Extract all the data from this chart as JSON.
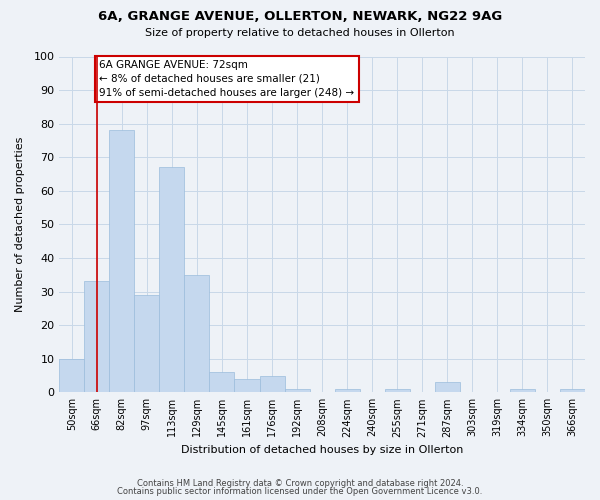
{
  "title": "6A, GRANGE AVENUE, OLLERTON, NEWARK, NG22 9AG",
  "subtitle": "Size of property relative to detached houses in Ollerton",
  "xlabel": "Distribution of detached houses by size in Ollerton",
  "ylabel": "Number of detached properties",
  "bar_labels": [
    "50sqm",
    "66sqm",
    "82sqm",
    "97sqm",
    "113sqm",
    "129sqm",
    "145sqm",
    "161sqm",
    "176sqm",
    "192sqm",
    "208sqm",
    "224sqm",
    "240sqm",
    "255sqm",
    "271sqm",
    "287sqm",
    "303sqm",
    "319sqm",
    "334sqm",
    "350sqm",
    "366sqm"
  ],
  "bar_values": [
    10,
    33,
    78,
    29,
    67,
    35,
    6,
    4,
    5,
    1,
    0,
    1,
    0,
    1,
    0,
    3,
    0,
    0,
    1,
    0,
    1
  ],
  "bar_color": "#c5d8ee",
  "bar_edge_color": "#9bbcdc",
  "grid_color": "#c8d8e8",
  "background_color": "#eef2f7",
  "plot_bg_color": "#eef2f7",
  "vline_x": 1.0,
  "vline_color": "#cc0000",
  "annotation_text": "6A GRANGE AVENUE: 72sqm\n← 8% of detached houses are smaller (21)\n91% of semi-detached houses are larger (248) →",
  "annotation_box_color": "#ffffff",
  "annotation_box_edge": "#cc0000",
  "ylim": [
    0,
    100
  ],
  "yticks": [
    0,
    10,
    20,
    30,
    40,
    50,
    60,
    70,
    80,
    90,
    100
  ],
  "footer_line1": "Contains HM Land Registry data © Crown copyright and database right 2024.",
  "footer_line2": "Contains public sector information licensed under the Open Government Licence v3.0."
}
